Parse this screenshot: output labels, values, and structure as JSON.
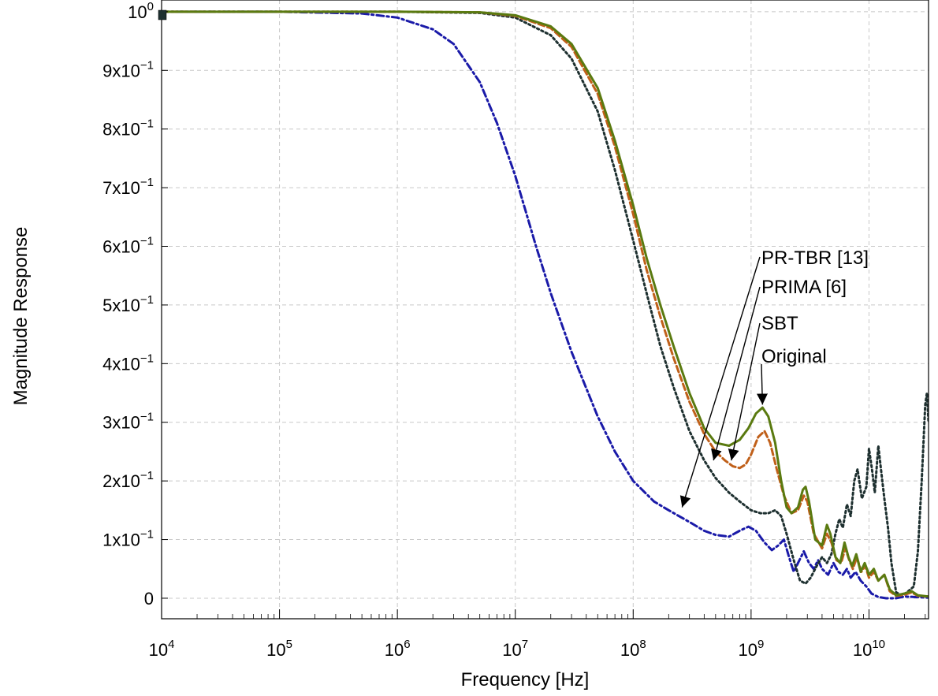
{
  "chart_data": {
    "type": "line",
    "xlabel": "Frequency [Hz]",
    "ylabel": "Magnitude Response",
    "xscale": "log",
    "xlim": [
      10000,
      32000000000
    ],
    "ylim": [
      -0.035,
      1.02
    ],
    "grid": true,
    "x_ticks": [
      {
        "value": 10000,
        "base": "10",
        "exp": "4"
      },
      {
        "value": 100000,
        "base": "10",
        "exp": "5"
      },
      {
        "value": 1000000,
        "base": "10",
        "exp": "6"
      },
      {
        "value": 10000000,
        "base": "10",
        "exp": "7"
      },
      {
        "value": 100000000,
        "base": "10",
        "exp": "8"
      },
      {
        "value": 1000000000,
        "base": "10",
        "exp": "9"
      },
      {
        "value": 10000000000,
        "base": "10",
        "exp": "10"
      }
    ],
    "y_ticks": [
      {
        "value": 0,
        "base": "0",
        "exp": ""
      },
      {
        "value": 0.1,
        "base": "1x10",
        "exp": "−1"
      },
      {
        "value": 0.2,
        "base": "2x10",
        "exp": "−1"
      },
      {
        "value": 0.3,
        "base": "3x10",
        "exp": "−1"
      },
      {
        "value": 0.4,
        "base": "4x10",
        "exp": "−1"
      },
      {
        "value": 0.5,
        "base": "5x10",
        "exp": "−1"
      },
      {
        "value": 0.6,
        "base": "6x10",
        "exp": "−1"
      },
      {
        "value": 0.7,
        "base": "7x10",
        "exp": "−1"
      },
      {
        "value": 0.8,
        "base": "8x10",
        "exp": "−1"
      },
      {
        "value": 0.9,
        "base": "9x10",
        "exp": "−1"
      },
      {
        "value": 1.0,
        "base": "10",
        "exp": "0"
      }
    ],
    "series": [
      {
        "name": "Original",
        "color": "#5a7a10",
        "style": "solid",
        "points": [
          [
            10000,
            1.0
          ],
          [
            1000000,
            1.0
          ],
          [
            5000000,
            0.999
          ],
          [
            10000000,
            0.994
          ],
          [
            20000000,
            0.975
          ],
          [
            30000000,
            0.945
          ],
          [
            50000000,
            0.87
          ],
          [
            70000000,
            0.78
          ],
          [
            100000000,
            0.67
          ],
          [
            130000000,
            0.58
          ],
          [
            170000000,
            0.5
          ],
          [
            220000000,
            0.43
          ],
          [
            300000000,
            0.35
          ],
          [
            400000000,
            0.29
          ],
          [
            500000000,
            0.265
          ],
          [
            650000000,
            0.26
          ],
          [
            800000000,
            0.27
          ],
          [
            950000000,
            0.29
          ],
          [
            1100000000,
            0.315
          ],
          [
            1250000000,
            0.325
          ],
          [
            1400000000,
            0.31
          ],
          [
            1600000000,
            0.265
          ],
          [
            1800000000,
            0.2
          ],
          [
            2000000000,
            0.155
          ],
          [
            2200000000,
            0.145
          ],
          [
            2500000000,
            0.155
          ],
          [
            2750000000,
            0.185
          ],
          [
            2900000000,
            0.19
          ],
          [
            3100000000,
            0.165
          ],
          [
            3500000000,
            0.1
          ],
          [
            4000000000,
            0.09
          ],
          [
            4400000000,
            0.125
          ],
          [
            4700000000,
            0.11
          ],
          [
            5200000000,
            0.07
          ],
          [
            5700000000,
            0.06
          ],
          [
            6200000000,
            0.095
          ],
          [
            6700000000,
            0.07
          ],
          [
            7200000000,
            0.055
          ],
          [
            7800000000,
            0.075
          ],
          [
            8500000000,
            0.045
          ],
          [
            9200000000,
            0.06
          ],
          [
            10000000000,
            0.04
          ],
          [
            11000000000,
            0.05
          ],
          [
            12000000000,
            0.03
          ],
          [
            13500000000,
            0.04
          ],
          [
            15000000000,
            0.015
          ],
          [
            17000000000,
            0.005
          ],
          [
            20000000000,
            0.008
          ],
          [
            23000000000,
            0.012
          ],
          [
            26000000000,
            0.005
          ],
          [
            32000000000,
            0.003
          ]
        ]
      },
      {
        "name": "SBT",
        "color": "#c0601a",
        "style": "dashed",
        "points": [
          [
            10000,
            1.0
          ],
          [
            1000000,
            1.0
          ],
          [
            5000000,
            0.999
          ],
          [
            10000000,
            0.993
          ],
          [
            20000000,
            0.972
          ],
          [
            30000000,
            0.94
          ],
          [
            50000000,
            0.86
          ],
          [
            70000000,
            0.77
          ],
          [
            100000000,
            0.655
          ],
          [
            130000000,
            0.56
          ],
          [
            170000000,
            0.48
          ],
          [
            220000000,
            0.41
          ],
          [
            300000000,
            0.335
          ],
          [
            400000000,
            0.28
          ],
          [
            500000000,
            0.25
          ],
          [
            600000000,
            0.235
          ],
          [
            700000000,
            0.225
          ],
          [
            800000000,
            0.222
          ],
          [
            900000000,
            0.228
          ],
          [
            1000000000,
            0.245
          ],
          [
            1150000000,
            0.275
          ],
          [
            1300000000,
            0.285
          ],
          [
            1450000000,
            0.265
          ],
          [
            1650000000,
            0.22
          ],
          [
            1900000000,
            0.175
          ],
          [
            2200000000,
            0.145
          ],
          [
            2500000000,
            0.15
          ],
          [
            2800000000,
            0.175
          ],
          [
            3000000000,
            0.165
          ],
          [
            3400000000,
            0.11
          ],
          [
            4000000000,
            0.085
          ],
          [
            4400000000,
            0.11
          ],
          [
            4800000000,
            0.095
          ],
          [
            5300000000,
            0.065
          ],
          [
            5800000000,
            0.06
          ],
          [
            6300000000,
            0.085
          ],
          [
            6800000000,
            0.065
          ],
          [
            7300000000,
            0.05
          ],
          [
            7900000000,
            0.07
          ],
          [
            8600000000,
            0.045
          ],
          [
            9300000000,
            0.055
          ],
          [
            10000000000,
            0.035
          ],
          [
            11000000000,
            0.045
          ],
          [
            12000000000,
            0.03
          ],
          [
            13500000000,
            0.04
          ],
          [
            15000000000,
            0.012
          ],
          [
            17000000000,
            0.004
          ],
          [
            20000000000,
            0.006
          ],
          [
            23000000000,
            0.01
          ],
          [
            26000000000,
            0.004
          ],
          [
            32000000000,
            0.003
          ]
        ]
      },
      {
        "name": "PRIMA [6]",
        "color": "#1e3030",
        "style": "dotted",
        "points": [
          [
            10000,
            1.0
          ],
          [
            1000000,
            1.0
          ],
          [
            5000000,
            0.998
          ],
          [
            10000000,
            0.99
          ],
          [
            20000000,
            0.96
          ],
          [
            30000000,
            0.92
          ],
          [
            50000000,
            0.83
          ],
          [
            70000000,
            0.73
          ],
          [
            100000000,
            0.61
          ],
          [
            130000000,
            0.52
          ],
          [
            170000000,
            0.43
          ],
          [
            220000000,
            0.36
          ],
          [
            300000000,
            0.285
          ],
          [
            400000000,
            0.235
          ],
          [
            500000000,
            0.205
          ],
          [
            650000000,
            0.18
          ],
          [
            800000000,
            0.165
          ],
          [
            1000000000,
            0.15
          ],
          [
            1200000000,
            0.145
          ],
          [
            1400000000,
            0.145
          ],
          [
            1600000000,
            0.15
          ],
          [
            1800000000,
            0.14
          ],
          [
            2000000000,
            0.11
          ],
          [
            2300000000,
            0.065
          ],
          [
            2600000000,
            0.03
          ],
          [
            2900000000,
            0.025
          ],
          [
            3200000000,
            0.035
          ],
          [
            3600000000,
            0.055
          ],
          [
            4000000000,
            0.07
          ],
          [
            4400000000,
            0.06
          ],
          [
            4800000000,
            0.075
          ],
          [
            5200000000,
            0.11
          ],
          [
            5600000000,
            0.135
          ],
          [
            6000000000,
            0.12
          ],
          [
            6500000000,
            0.16
          ],
          [
            7000000000,
            0.14
          ],
          [
            7500000000,
            0.2
          ],
          [
            8000000000,
            0.22
          ],
          [
            8700000000,
            0.17
          ],
          [
            9500000000,
            0.19
          ],
          [
            10000000000,
            0.255
          ],
          [
            10600000000,
            0.22
          ],
          [
            11200000000,
            0.18
          ],
          [
            12000000000,
            0.26
          ],
          [
            12800000000,
            0.21
          ],
          [
            13500000000,
            0.17
          ],
          [
            14500000000,
            0.12
          ],
          [
            15500000000,
            0.06
          ],
          [
            17000000000,
            0.01
          ],
          [
            19000000000,
            0.005
          ],
          [
            21000000000,
            0.01
          ],
          [
            24000000000,
            0.02
          ],
          [
            26000000000,
            0.08
          ],
          [
            28000000000,
            0.2
          ],
          [
            30000000000,
            0.33
          ],
          [
            31000000000,
            0.35
          ],
          [
            32000000000,
            0.3
          ]
        ]
      },
      {
        "name": "PR-TBR [13]",
        "color": "#1a1aa8",
        "style": "dashdot",
        "points": [
          [
            10000,
            1.0
          ],
          [
            100000,
            1.0
          ],
          [
            500000,
            0.997
          ],
          [
            1000000,
            0.99
          ],
          [
            2000000,
            0.97
          ],
          [
            3000000,
            0.945
          ],
          [
            5000000,
            0.88
          ],
          [
            7000000,
            0.81
          ],
          [
            10000000,
            0.72
          ],
          [
            15000000,
            0.6
          ],
          [
            20000000,
            0.52
          ],
          [
            30000000,
            0.42
          ],
          [
            50000000,
            0.31
          ],
          [
            70000000,
            0.25
          ],
          [
            100000000,
            0.2
          ],
          [
            150000000,
            0.165
          ],
          [
            200000000,
            0.15
          ],
          [
            300000000,
            0.13
          ],
          [
            400000000,
            0.115
          ],
          [
            500000000,
            0.108
          ],
          [
            650000000,
            0.105
          ],
          [
            800000000,
            0.115
          ],
          [
            950000000,
            0.122
          ],
          [
            1100000000,
            0.115
          ],
          [
            1300000000,
            0.095
          ],
          [
            1500000000,
            0.082
          ],
          [
            1700000000,
            0.09
          ],
          [
            1900000000,
            0.1
          ],
          [
            2100000000,
            0.07
          ],
          [
            2300000000,
            0.045
          ],
          [
            2500000000,
            0.06
          ],
          [
            2800000000,
            0.08
          ],
          [
            3100000000,
            0.06
          ],
          [
            3400000000,
            0.05
          ],
          [
            3700000000,
            0.065
          ],
          [
            4000000000,
            0.05
          ],
          [
            4500000000,
            0.04
          ],
          [
            5000000000,
            0.06
          ],
          [
            5500000000,
            0.045
          ],
          [
            6000000000,
            0.04
          ],
          [
            6500000000,
            0.05
          ],
          [
            7000000000,
            0.035
          ],
          [
            7700000000,
            0.045
          ],
          [
            8500000000,
            0.03
          ],
          [
            9500000000,
            0.02
          ],
          [
            10500000000,
            0.008
          ],
          [
            12000000000,
            0.002
          ],
          [
            14000000000,
            0.0
          ],
          [
            17000000000,
            0.0
          ],
          [
            20000000000,
            0.003
          ],
          [
            25000000000,
            0.002
          ],
          [
            32000000000,
            0.001
          ]
        ]
      }
    ],
    "annotations": [
      {
        "label": "PR-TBR [13]",
        "target": [
          260000000,
          0.155
        ]
      },
      {
        "label": "PRIMA [6]",
        "target": [
          480000000,
          0.235
        ]
      },
      {
        "label": "SBT",
        "target": [
          680000000,
          0.235
        ]
      },
      {
        "label": "Original",
        "target": [
          1250000000,
          0.33
        ]
      }
    ]
  }
}
